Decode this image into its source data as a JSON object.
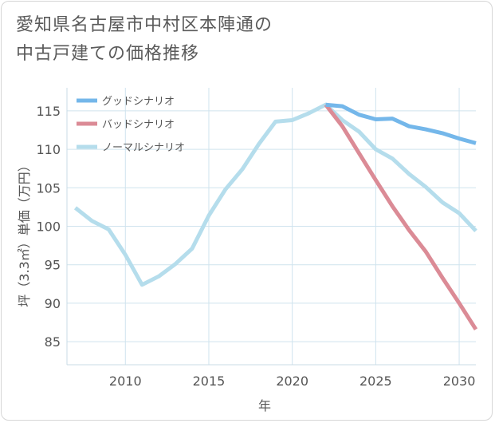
{
  "title_lines": [
    "愛知県名古屋市中村区本陣通の",
    "中古戸建ての価格推移"
  ],
  "chart_data": {
    "type": "line",
    "xlabel": "年",
    "ylabel": "坪（3.3㎡）単価（万円）",
    "xlim": [
      2006.5,
      2031
    ],
    "ylim": [
      82,
      118
    ],
    "xticks": [
      2010,
      2015,
      2020,
      2025,
      2030
    ],
    "yticks": [
      85,
      90,
      95,
      100,
      105,
      110,
      115
    ],
    "grid": true,
    "legend_position": "top-left",
    "series": [
      {
        "name": "グッドシナリオ",
        "color": "#74b7ea",
        "x": [
          2022,
          2023,
          2024,
          2025,
          2026,
          2027,
          2028,
          2029,
          2030,
          2031
        ],
        "y": [
          115.8,
          115.6,
          114.5,
          113.9,
          114.0,
          113.0,
          112.6,
          112.1,
          111.4,
          110.8
        ]
      },
      {
        "name": "バッドシナリオ",
        "color": "#db8b96",
        "x": [
          2022,
          2023,
          2024,
          2025,
          2026,
          2027,
          2028,
          2029,
          2030,
          2031
        ],
        "y": [
          115.8,
          113.0,
          109.5,
          106.0,
          102.6,
          99.5,
          96.7,
          93.3,
          90.0,
          86.6
        ]
      },
      {
        "name": "ノーマルシナリオ",
        "color": "#b5ddec",
        "x": [
          2007,
          2008,
          2009,
          2010,
          2011,
          2012,
          2013,
          2014,
          2015,
          2016,
          2017,
          2018,
          2019,
          2020,
          2021,
          2022,
          2023,
          2024,
          2025,
          2026,
          2027,
          2028,
          2029,
          2030,
          2031
        ],
        "y": [
          102.4,
          100.7,
          99.6,
          96.3,
          92.4,
          93.5,
          95.1,
          97.1,
          101.4,
          104.8,
          107.4,
          110.7,
          113.6,
          113.8,
          114.7,
          115.8,
          113.8,
          112.3,
          110.0,
          108.8,
          106.8,
          105.1,
          103.1,
          101.7,
          99.4
        ]
      }
    ]
  }
}
